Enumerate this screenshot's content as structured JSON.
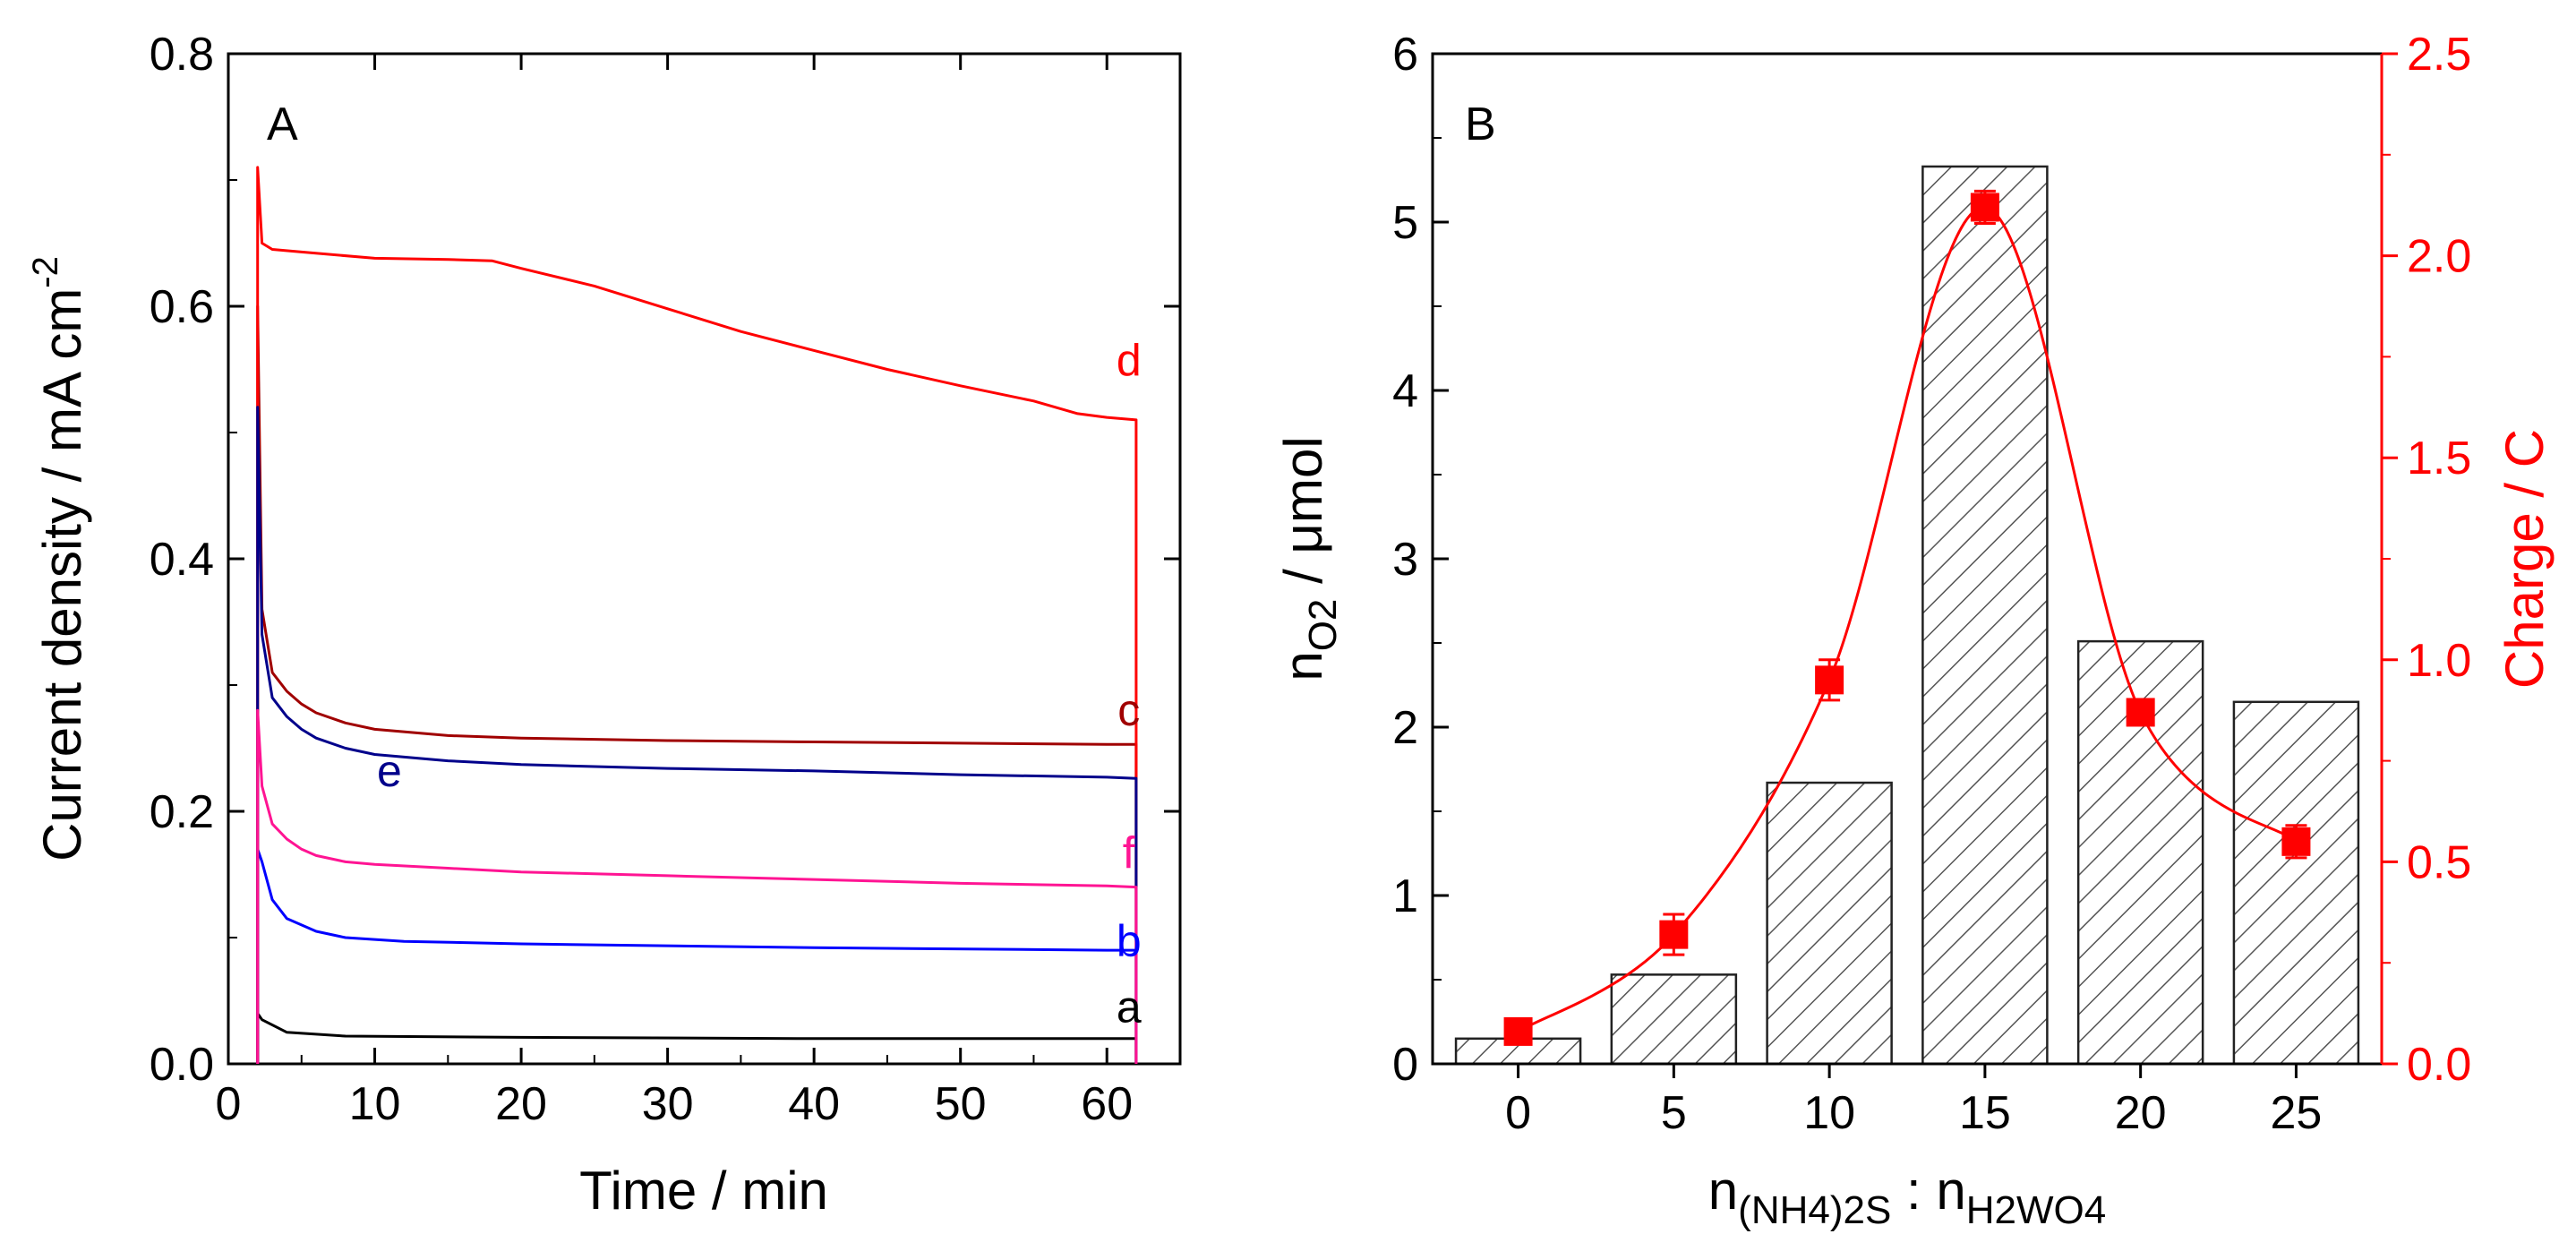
{
  "chart_data": [
    {
      "panel": "A",
      "type": "line",
      "panel_label": "A",
      "xlabel": "Time / min",
      "ylabel": "Current density / mA cm",
      "ylabel_sup": "-2",
      "xlim": [
        0,
        65
      ],
      "ylim": [
        0,
        0.8
      ],
      "xticks": [
        "0",
        "10",
        "20",
        "30",
        "40",
        "50",
        "60"
      ],
      "yticks": [
        "0.0",
        "0.2",
        "0.4",
        "0.6",
        "0.8"
      ],
      "series": [
        {
          "name": "a",
          "color": "#000000",
          "start": 2,
          "end": 62,
          "spike": 0.04,
          "x": [
            2.3,
            4,
            8,
            20,
            40,
            60,
            62
          ],
          "y": [
            0.035,
            0.025,
            0.022,
            0.021,
            0.02,
            0.02,
            0.02
          ]
        },
        {
          "name": "b",
          "color": "#0000ff",
          "start": 2,
          "end": 62,
          "spike": 0.17,
          "x": [
            2.3,
            3,
            4,
            6,
            8,
            12,
            20,
            40,
            60,
            62
          ],
          "y": [
            0.16,
            0.13,
            0.115,
            0.105,
            0.1,
            0.097,
            0.095,
            0.092,
            0.09,
            0.09
          ]
        },
        {
          "name": "c",
          "color": "#a00000",
          "start": 2,
          "end": 62,
          "spike": 0.6,
          "x": [
            2.3,
            3,
            4,
            5,
            6,
            8,
            10,
            15,
            20,
            30,
            40,
            50,
            60,
            62
          ],
          "y": [
            0.36,
            0.31,
            0.295,
            0.285,
            0.278,
            0.27,
            0.265,
            0.26,
            0.258,
            0.256,
            0.255,
            0.254,
            0.253,
            0.253
          ]
        },
        {
          "name": "d",
          "color": "#ff0000",
          "start": 2,
          "end": 62,
          "spike": 0.71,
          "x": [
            2.3,
            3,
            5,
            10,
            15,
            18,
            20,
            25,
            30,
            35,
            40,
            45,
            50,
            55,
            58,
            60,
            62
          ],
          "y": [
            0.65,
            0.645,
            0.643,
            0.638,
            0.637,
            0.636,
            0.63,
            0.616,
            0.598,
            0.58,
            0.565,
            0.55,
            0.537,
            0.525,
            0.515,
            0.512,
            0.51
          ]
        },
        {
          "name": "e",
          "color": "#00008b",
          "start": 2,
          "end": 62,
          "spike": 0.52,
          "x": [
            2.3,
            3,
            4,
            5,
            6,
            8,
            10,
            15,
            20,
            30,
            40,
            50,
            60,
            62
          ],
          "y": [
            0.34,
            0.29,
            0.275,
            0.265,
            0.258,
            0.25,
            0.245,
            0.24,
            0.237,
            0.234,
            0.232,
            0.229,
            0.227,
            0.226
          ]
        },
        {
          "name": "f",
          "color": "#ff1493",
          "start": 2,
          "end": 62,
          "spike": 0.28,
          "x": [
            2.3,
            3,
            4,
            5,
            6,
            8,
            10,
            15,
            20,
            30,
            40,
            50,
            60,
            62
          ],
          "y": [
            0.22,
            0.19,
            0.178,
            0.17,
            0.165,
            0.16,
            0.158,
            0.155,
            0.152,
            0.149,
            0.146,
            0.143,
            0.141,
            0.14
          ]
        }
      ],
      "curve_labels": [
        {
          "text": "d",
          "color": "#ff0000",
          "x": 61.5,
          "y": 0.545
        },
        {
          "text": "c",
          "color": "#a00000",
          "x": 61.5,
          "y": 0.268
        },
        {
          "text": "e",
          "color": "#00008b",
          "x": 11,
          "y": 0.22
        },
        {
          "text": "f",
          "color": "#ff1493",
          "x": 61.5,
          "y": 0.155
        },
        {
          "text": "b",
          "color": "#0000ff",
          "x": 61.5,
          "y": 0.085
        },
        {
          "text": "a",
          "color": "#000000",
          "x": 61.5,
          "y": 0.033
        }
      ]
    },
    {
      "panel": "B",
      "type": "bar",
      "panel_label": "B",
      "categories": [
        "0",
        "5",
        "10",
        "15",
        "20",
        "25"
      ],
      "values": [
        0.15,
        0.53,
        1.67,
        5.33,
        2.51,
        2.15
      ],
      "ylabel": "n",
      "ylabel_sub": "O2",
      "ylabel_rest": " / μmol",
      "ylim": [
        0,
        6
      ],
      "yticks": [
        "0",
        "1",
        "2",
        "3",
        "4",
        "5",
        "6"
      ],
      "xlabel_parts": [
        "n",
        "(NH4)2S",
        " : n",
        "H2WO4"
      ],
      "secondary": {
        "ylabel": "Charge / C",
        "ylim": [
          0,
          2.5
        ],
        "yticks": [
          "0.0",
          "0.5",
          "1.0",
          "1.5",
          "2.0",
          "2.5"
        ],
        "values": [
          0.08,
          0.32,
          0.95,
          2.12,
          0.87,
          0.55
        ],
        "errors": [
          0.02,
          0.05,
          0.05,
          0.04,
          0.03,
          0.04
        ],
        "color": "#ff0000"
      }
    }
  ]
}
